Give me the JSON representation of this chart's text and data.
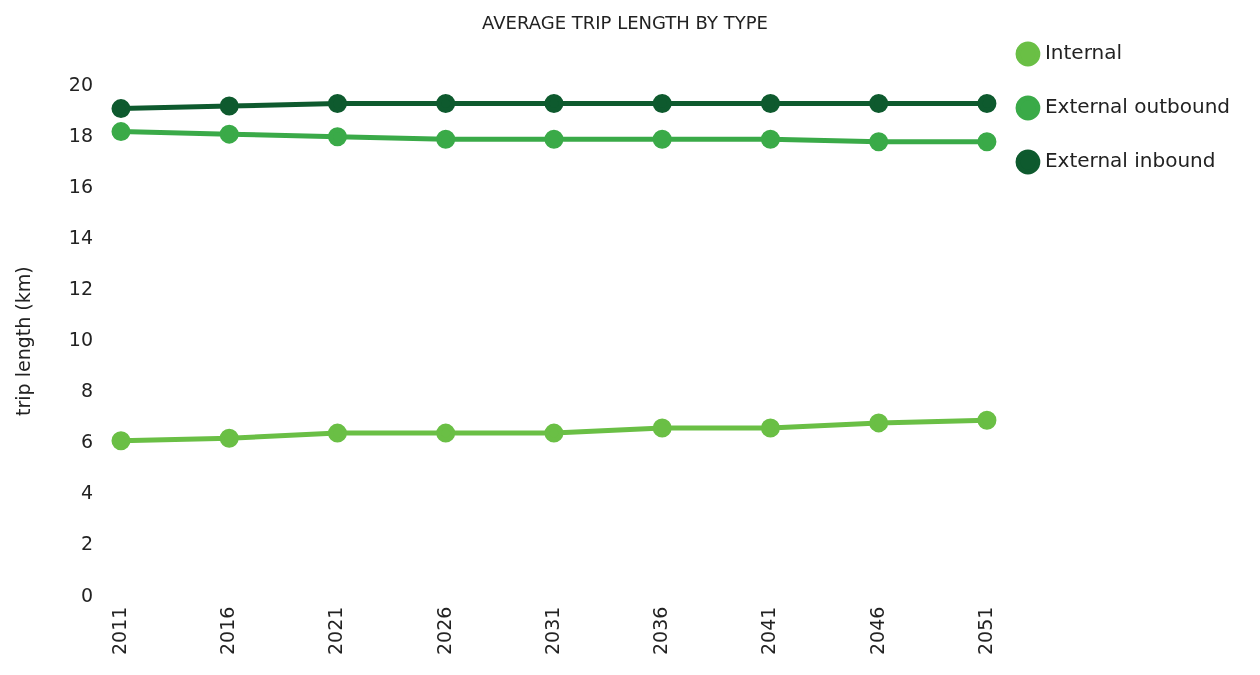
{
  "chart_data": {
    "type": "line",
    "title": "AVERAGE TRIP LENGTH BY TYPE",
    "ylabel": "trip length (km)",
    "categories": [
      "2011",
      "2016",
      "2021",
      "2026",
      "2031",
      "2036",
      "2041",
      "2046",
      "2051"
    ],
    "series": [
      {
        "name": "Internal",
        "color": "#6abf45",
        "values": [
          6.1,
          6.2,
          6.4,
          6.4,
          6.4,
          6.6,
          6.6,
          6.8,
          6.9
        ]
      },
      {
        "name": "External outbound",
        "color": "#3aaa48",
        "values": [
          18.2,
          18.1,
          18.0,
          17.9,
          17.9,
          17.9,
          17.9,
          17.8,
          17.8
        ]
      },
      {
        "name": "External inbound",
        "color": "#0e5a2e",
        "values": [
          19.1,
          19.2,
          19.3,
          19.3,
          19.3,
          19.3,
          19.3,
          19.3,
          19.3
        ]
      }
    ],
    "ylim": [
      0,
      20
    ],
    "yticks": [
      0,
      2,
      4,
      6,
      8,
      10,
      12,
      14,
      16,
      18,
      20
    ],
    "grid": false,
    "legend": "right",
    "marker": "circle",
    "line_style": "solid"
  }
}
